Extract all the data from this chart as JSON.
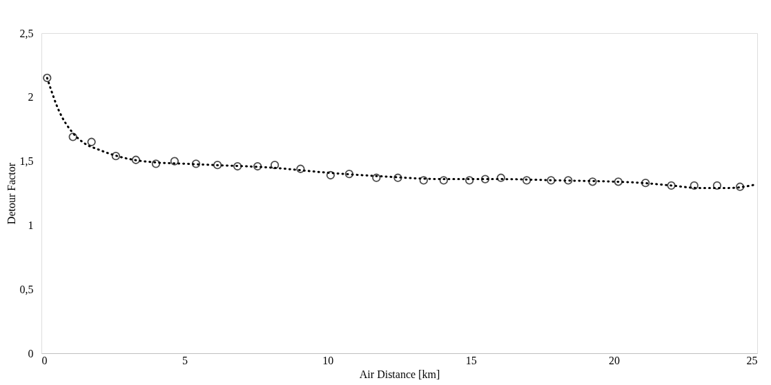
{
  "chart_data": {
    "type": "scatter",
    "xlabel": "Air Distance [km]",
    "ylabel": "Detour Factor",
    "xlim": [
      0,
      25
    ],
    "xticks": [
      0,
      5,
      10,
      15,
      20,
      25
    ],
    "ylim": [
      0,
      2.5
    ],
    "yticks": [
      0,
      {
        "value": 0.5,
        "label": "0,5"
      },
      1,
      {
        "value": 1.5,
        "label": "1,5"
      },
      2,
      {
        "value": 2.5,
        "label": "2,5"
      }
    ],
    "grid": false,
    "series": [
      {
        "type": "scatter",
        "color": "#000000",
        "marker": "circle",
        "x": [
          0.2,
          1.1,
          1.75,
          2.6,
          3.3,
          4.0,
          4.65,
          5.4,
          6.15,
          6.85,
          7.55,
          8.15,
          9.05,
          10.1,
          10.75,
          11.7,
          12.45,
          13.35,
          14.05,
          14.95,
          15.5,
          16.05,
          16.95,
          17.8,
          18.4,
          19.25,
          20.15,
          21.1,
          22.0,
          22.8,
          23.6,
          24.4
        ],
        "values": [
          2.15,
          1.69,
          1.65,
          1.54,
          1.51,
          1.48,
          1.5,
          1.48,
          1.47,
          1.46,
          1.46,
          1.47,
          1.44,
          1.39,
          1.4,
          1.37,
          1.37,
          1.35,
          1.35,
          1.35,
          1.36,
          1.37,
          1.35,
          1.35,
          1.35,
          1.34,
          1.34,
          1.33,
          1.31,
          1.31,
          1.31,
          1.3
        ]
      },
      {
        "type": "line",
        "color": "#000000",
        "marker": "none",
        "line_style": "dotted",
        "x": [
          0.2,
          0.6,
          1.1,
          1.5,
          2.0,
          2.5,
          3.0,
          4.0,
          5.0,
          6.0,
          8.0,
          10.0,
          12.0,
          14.0,
          16.0,
          18.0,
          20.0,
          21.0,
          22.0,
          23.0,
          24.0,
          25.0
        ],
        "values": [
          2.15,
          1.9,
          1.72,
          1.64,
          1.59,
          1.55,
          1.52,
          1.49,
          1.48,
          1.47,
          1.45,
          1.41,
          1.38,
          1.36,
          1.36,
          1.35,
          1.34,
          1.33,
          1.31,
          1.29,
          1.29,
          1.32
        ]
      }
    ]
  }
}
